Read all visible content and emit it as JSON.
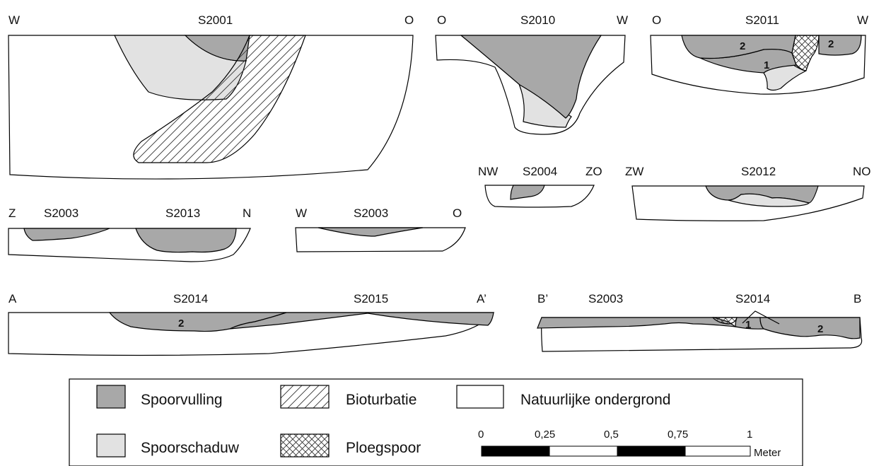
{
  "profiles": {
    "s2001": {
      "left": "W",
      "title": "S2001",
      "right": "O"
    },
    "s2010": {
      "left": "O",
      "title": "S2010",
      "right": "W"
    },
    "s2011": {
      "left": "O",
      "title": "S2011",
      "right": "W",
      "layer_a": "2",
      "layer_b": "2",
      "layer_c": "1"
    },
    "s2004": {
      "left": "NW",
      "title": "S2004",
      "right": "ZO"
    },
    "s2012": {
      "left": "ZW",
      "title": "S2012",
      "right": "NO"
    },
    "s2003_s2013": {
      "left": "Z",
      "title_a": "S2003",
      "title_b": "S2013",
      "right": "N"
    },
    "s2003": {
      "left": "W",
      "title": "S2003",
      "right": "O"
    },
    "aa": {
      "left": "A",
      "title_a": "S2014",
      "title_b": "S2015",
      "right": "A’",
      "layer": "2"
    },
    "bb": {
      "left": "B’",
      "title_a": "S2003",
      "title_b": "S2014",
      "right": "B",
      "layer_a": "1",
      "layer_b": "2"
    }
  },
  "legend": {
    "items": [
      {
        "label": "Spoorvulling",
        "pattern": "fill",
        "color": "#a8a8a8"
      },
      {
        "label": "Bioturbatie",
        "pattern": "diagonal-hatch",
        "color": "#ffffff"
      },
      {
        "label": "Natuurlijke ondergrond",
        "pattern": "plain",
        "color": "#ffffff"
      },
      {
        "label": "Spoorschaduw",
        "pattern": "fill",
        "color": "#e2e2e2"
      },
      {
        "label": "Ploegspoor",
        "pattern": "cross-hatch",
        "color": "#ffffff"
      }
    ]
  },
  "scalebar": {
    "ticks": [
      "0",
      "0,25",
      "0,5",
      "0,75",
      "1"
    ],
    "unit": "Meter"
  }
}
